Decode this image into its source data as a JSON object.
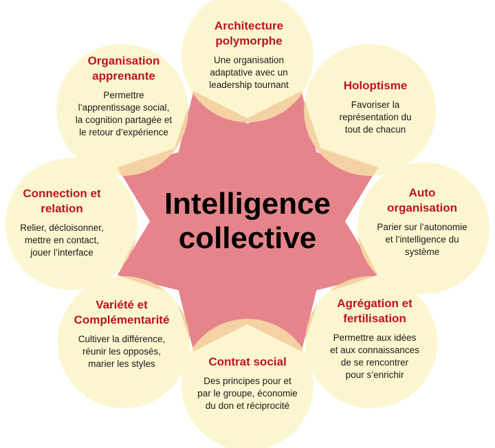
{
  "center": {
    "title": "Intelligence\ncollective"
  },
  "petals": [
    {
      "id": "architecture",
      "title": "Architecture\npolymorphe",
      "body": "Une organisation\nadaptative avec un\nleadership tournant"
    },
    {
      "id": "holoptisme",
      "title": "Holoptisme",
      "body": "Favoriser la\nreprésentation du\ntout de chacun"
    },
    {
      "id": "auto-organisation",
      "title": "Auto\norganisation",
      "body": "Parier sur l’autonomie\net l’intelligence du\nsystème"
    },
    {
      "id": "agregation",
      "title": "Agrégation et\nfertilisation",
      "body": "Permettre aux idées\net aux connaissances\nde se rencontrer\npour s’enrichir"
    },
    {
      "id": "contrat-social",
      "title": "Contrat social",
      "body": "Des principes pour et\npar le groupe, économie\ndu don et réciprocité"
    },
    {
      "id": "variete",
      "title": "Variété et\nComplémentarité",
      "body": "Cultiver la différence,\nréunir les opposés,\nmarier les styles"
    },
    {
      "id": "connection",
      "title": "Connection et\nrelation",
      "body": "Relier, décloisonner,\nmettre en contact,\njouer l’interface"
    },
    {
      "id": "organisation-apprenante",
      "title": "Organisation\napprenante",
      "body": "Permettre\nl’apprentissage social,\nla cognition partagée et\nle retour d’expérience"
    }
  ],
  "colors": {
    "petal_fill": "#fbf6cf",
    "overlap_fill": "#f5d2a3",
    "center_fill": "#e5858b",
    "title_color": "#c0121b"
  }
}
